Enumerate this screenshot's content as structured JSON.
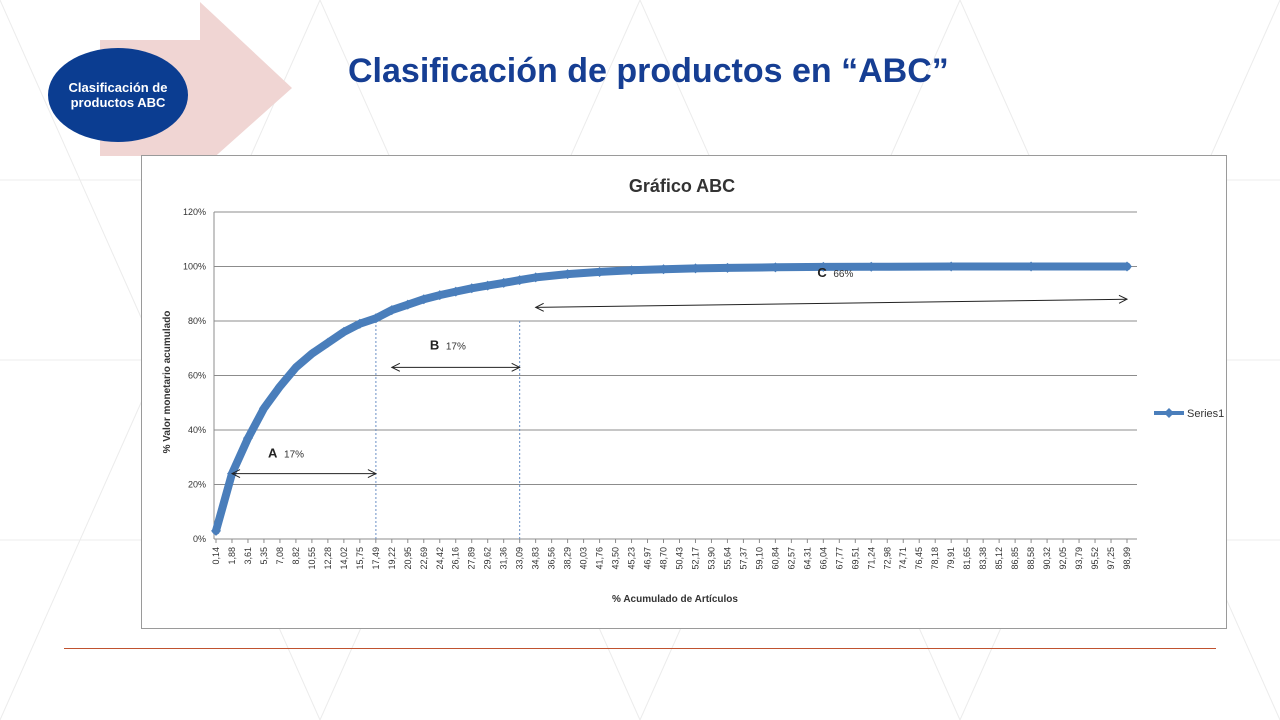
{
  "slide": {
    "title": "Clasificación de productos en “ABC”",
    "badge_label": "Clasificación de productos ABC",
    "colors": {
      "badge": "#0b3d91",
      "title": "#163e93",
      "arrow_shape": "#f0d5d3",
      "series": "#4a7ebb",
      "rule": "#c0522f"
    }
  },
  "chart_data": {
    "type": "line",
    "title": "Gráfico ABC",
    "xlabel": "% Acumulado de Artículos",
    "ylabel": "% Valor monetario acumulado",
    "ylim": [
      0,
      120
    ],
    "yticks": [
      "0%",
      "20%",
      "40%",
      "60%",
      "80%",
      "100%",
      "120%"
    ],
    "ytick_values": [
      0,
      20,
      40,
      60,
      80,
      100,
      120
    ],
    "xlim": [
      0.14,
      98.99
    ],
    "x_tick_labels": [
      "0,14",
      "1,88",
      "3,61",
      "5,35",
      "7,08",
      "8,82",
      "10,55",
      "12,28",
      "14,02",
      "15,75",
      "17,49",
      "19,22",
      "20,95",
      "22,69",
      "24,42",
      "26,16",
      "27,89",
      "29,62",
      "31,36",
      "33,09",
      "34,83",
      "36,56",
      "38,29",
      "40,03",
      "41,76",
      "43,50",
      "45,23",
      "46,97",
      "48,70",
      "50,43",
      "52,17",
      "53,90",
      "55,64",
      "57,37",
      "59,10",
      "60,84",
      "62,57",
      "64,31",
      "66,04",
      "67,77",
      "69,51",
      "71,24",
      "72,98",
      "74,71",
      "76,45",
      "78,18",
      "79,91",
      "81,65",
      "83,38",
      "85,12",
      "86,85",
      "88,58",
      "90,32",
      "92,05",
      "93,79",
      "95,52",
      "97,25",
      "98,99"
    ],
    "series": [
      {
        "name": "Series1",
        "x": [
          0.14,
          1.88,
          3.61,
          5.35,
          7.08,
          8.82,
          10.55,
          12.28,
          14.02,
          15.75,
          17.49,
          19.22,
          20.95,
          22.69,
          24.42,
          26.16,
          27.89,
          29.62,
          31.36,
          33.09,
          34.83,
          38.29,
          41.76,
          45.23,
          48.7,
          52.17,
          55.64,
          60.84,
          66.04,
          71.24,
          79.91,
          88.58,
          98.99
        ],
        "y": [
          3,
          24,
          37,
          48,
          56,
          63,
          68,
          72,
          76,
          79,
          81,
          84,
          86,
          88,
          89.5,
          90.8,
          92,
          93,
          94,
          95,
          96,
          97.2,
          98,
          98.6,
          99,
          99.3,
          99.5,
          99.7,
          99.85,
          99.9,
          100,
          100,
          100
        ]
      }
    ],
    "legend": {
      "position": "right",
      "entries": [
        "Series1"
      ]
    },
    "grid": true,
    "vlines_x": [
      17.49,
      33.09
    ],
    "annotations": [
      {
        "letter": "A",
        "percent": "17%",
        "from": 1.88,
        "to": 17.49,
        "y": 24
      },
      {
        "letter": "B",
        "percent": "17%",
        "from": 19.22,
        "to": 33.09,
        "y": 63
      },
      {
        "letter": "C",
        "percent": "66%",
        "from": 34.83,
        "to": 98.99,
        "y_from": 85,
        "y_to": 88
      }
    ]
  }
}
